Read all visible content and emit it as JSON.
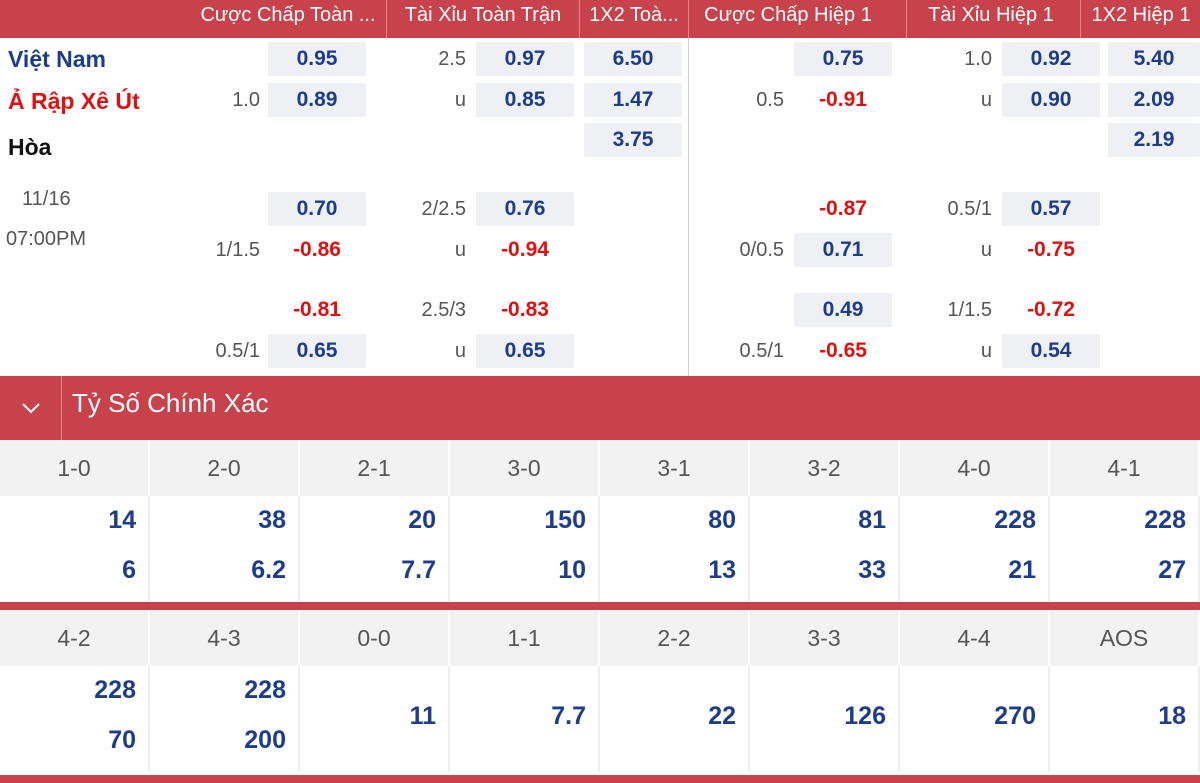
{
  "headers": [
    "Cược Chấp Toàn ...",
    "Tài Xỉu Toàn Trận",
    "1X2 Toà...",
    "Cược Chấp Hiệp 1",
    "Tài Xỉu Hiệp 1",
    "1X2 Hiệp 1"
  ],
  "teams": {
    "home": "Việt Nam",
    "away": "Ả Rập Xê Út",
    "draw": "Hòa"
  },
  "date": "11/16",
  "time": "07:00PM",
  "main": {
    "ft_hcap_line": "1.0",
    "ft_hcap_home": "0.95",
    "ft_hcap_away": "0.89",
    "ft_ou_line": "2.5",
    "ft_ou_u": "u",
    "ft_ou_over": "0.97",
    "ft_ou_under": "0.85",
    "ft_1x2_home": "6.50",
    "ft_1x2_away": "1.47",
    "ft_1x2_draw": "3.75",
    "h1_hcap_line": "0.5",
    "h1_hcap_home": "0.75",
    "h1_hcap_away": "-0.91",
    "h1_ou_line": "1.0",
    "h1_ou_u": "u",
    "h1_ou_over": "0.92",
    "h1_ou_under": "0.90",
    "h1_1x2_home": "5.40",
    "h1_1x2_away": "2.09",
    "h1_1x2_draw": "2.19"
  },
  "alt1": {
    "ft_hcap_line": "1/1.5",
    "ft_hcap_home": "0.70",
    "ft_hcap_away": "-0.86",
    "ft_ou_line": "2/2.5",
    "ft_ou_u": "u",
    "ft_ou_over": "0.76",
    "ft_ou_under": "-0.94",
    "h1_hcap_line": "0/0.5",
    "h1_hcap_home": "-0.87",
    "h1_hcap_away": "0.71",
    "h1_ou_line": "0.5/1",
    "h1_ou_u": "u",
    "h1_ou_over": "0.57",
    "h1_ou_under": "-0.75"
  },
  "alt2": {
    "ft_hcap_line": "0.5/1",
    "ft_hcap_home": "-0.81",
    "ft_hcap_away": "0.65",
    "ft_ou_line": "2.5/3",
    "ft_ou_u": "u",
    "ft_ou_over": "-0.83",
    "ft_ou_under": "0.65",
    "h1_hcap_line": "0.5/1",
    "h1_hcap_home": "0.49",
    "h1_hcap_away": "-0.65",
    "h1_ou_line": "1/1.5",
    "h1_ou_u": "u",
    "h1_ou_over": "-0.72",
    "h1_ou_under": "0.54"
  },
  "correct_score": {
    "title": "Tỷ Số Chính Xác",
    "row1": [
      {
        "score": "1-0",
        "a": "14",
        "b": "6"
      },
      {
        "score": "2-0",
        "a": "38",
        "b": "6.2"
      },
      {
        "score": "2-1",
        "a": "20",
        "b": "7.7"
      },
      {
        "score": "3-0",
        "a": "150",
        "b": "10"
      },
      {
        "score": "3-1",
        "a": "80",
        "b": "13"
      },
      {
        "score": "3-2",
        "a": "81",
        "b": "33"
      },
      {
        "score": "4-0",
        "a": "228",
        "b": "21"
      },
      {
        "score": "4-1",
        "a": "228",
        "b": "27"
      }
    ],
    "row2": [
      {
        "score": "4-2",
        "a": "228",
        "b": "70"
      },
      {
        "score": "4-3",
        "a": "228",
        "b": "200"
      },
      {
        "score": "0-0",
        "a": "11"
      },
      {
        "score": "1-1",
        "a": "7.7"
      },
      {
        "score": "2-2",
        "a": "22"
      },
      {
        "score": "3-3",
        "a": "126"
      },
      {
        "score": "4-4",
        "a": "270"
      },
      {
        "score": "AOS",
        "a": "18"
      }
    ]
  },
  "colors": {
    "header": "#c8424b",
    "blue": "#1c3c8c",
    "red": "#e01010",
    "cell_bg": "#eef0f3"
  },
  "icons": {
    "collapse": "chevron-down-icon"
  }
}
